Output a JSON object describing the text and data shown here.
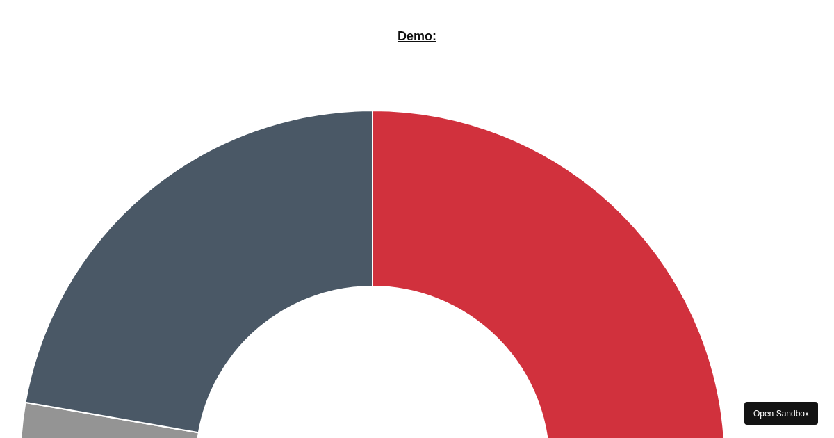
{
  "chart_data": {
    "type": "donut",
    "title": "Demo:",
    "categories": [
      null,
      null,
      null
    ],
    "values": [
      5.5,
      44.5,
      50
    ],
    "colors": [
      "#949494",
      "#4a5866",
      "#d1313d"
    ],
    "annotations": [
      "Open Sandbox"
    ]
  }
}
